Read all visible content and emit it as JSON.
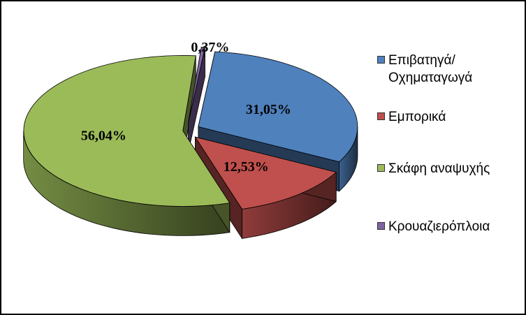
{
  "chart_data": {
    "type": "pie",
    "style": "3d-exploded",
    "legend_position": "right",
    "slices": [
      {
        "name": "Επιβατηγά/ Οχηματαγωγά",
        "value": 31.05,
        "label": "31,05%",
        "color": "#4f81bd",
        "legend_lines": [
          "Επιβατηγά/",
          "Οχηματαγωγά"
        ]
      },
      {
        "name": "Εμπορικά",
        "value": 12.53,
        "label": "12,53%",
        "color": "#c0504d",
        "legend_lines": [
          "Εμπορικά"
        ]
      },
      {
        "name": "Σκάφη αναψυχής",
        "value": 56.04,
        "label": "56,04%",
        "color": "#9bbb59",
        "legend_lines": [
          "Σκάφη αναψυχής"
        ]
      },
      {
        "name": "Κρουαζιερόπλοια",
        "value": 0.37,
        "label": "0,37%",
        "color": "#8064a2",
        "legend_lines": [
          "Κρουαζιερόπλοια"
        ]
      }
    ]
  }
}
